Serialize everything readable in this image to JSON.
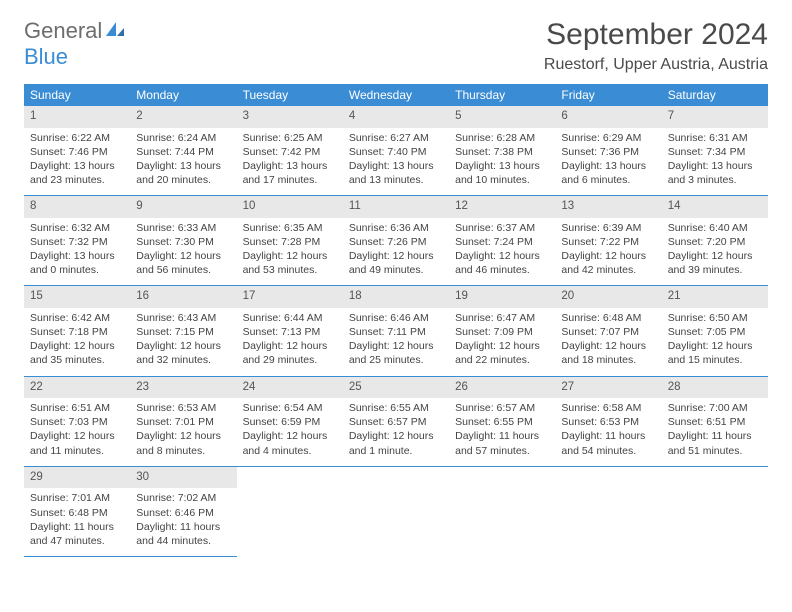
{
  "logo": {
    "part1": "General",
    "part2": "Blue"
  },
  "title": "September 2024",
  "location": "Ruestorf, Upper Austria, Austria",
  "colors": {
    "header_bg": "#3a8cd4",
    "header_text": "#ffffff",
    "daynum_bg": "#e8e8e8",
    "border": "#3a8cd4",
    "text": "#444444"
  },
  "weekdays": [
    "Sunday",
    "Monday",
    "Tuesday",
    "Wednesday",
    "Thursday",
    "Friday",
    "Saturday"
  ],
  "weeks": [
    [
      {
        "n": "1",
        "sr": "Sunrise: 6:22 AM",
        "ss": "Sunset: 7:46 PM",
        "d1": "Daylight: 13 hours",
        "d2": "and 23 minutes."
      },
      {
        "n": "2",
        "sr": "Sunrise: 6:24 AM",
        "ss": "Sunset: 7:44 PM",
        "d1": "Daylight: 13 hours",
        "d2": "and 20 minutes."
      },
      {
        "n": "3",
        "sr": "Sunrise: 6:25 AM",
        "ss": "Sunset: 7:42 PM",
        "d1": "Daylight: 13 hours",
        "d2": "and 17 minutes."
      },
      {
        "n": "4",
        "sr": "Sunrise: 6:27 AM",
        "ss": "Sunset: 7:40 PM",
        "d1": "Daylight: 13 hours",
        "d2": "and 13 minutes."
      },
      {
        "n": "5",
        "sr": "Sunrise: 6:28 AM",
        "ss": "Sunset: 7:38 PM",
        "d1": "Daylight: 13 hours",
        "d2": "and 10 minutes."
      },
      {
        "n": "6",
        "sr": "Sunrise: 6:29 AM",
        "ss": "Sunset: 7:36 PM",
        "d1": "Daylight: 13 hours",
        "d2": "and 6 minutes."
      },
      {
        "n": "7",
        "sr": "Sunrise: 6:31 AM",
        "ss": "Sunset: 7:34 PM",
        "d1": "Daylight: 13 hours",
        "d2": "and 3 minutes."
      }
    ],
    [
      {
        "n": "8",
        "sr": "Sunrise: 6:32 AM",
        "ss": "Sunset: 7:32 PM",
        "d1": "Daylight: 13 hours",
        "d2": "and 0 minutes."
      },
      {
        "n": "9",
        "sr": "Sunrise: 6:33 AM",
        "ss": "Sunset: 7:30 PM",
        "d1": "Daylight: 12 hours",
        "d2": "and 56 minutes."
      },
      {
        "n": "10",
        "sr": "Sunrise: 6:35 AM",
        "ss": "Sunset: 7:28 PM",
        "d1": "Daylight: 12 hours",
        "d2": "and 53 minutes."
      },
      {
        "n": "11",
        "sr": "Sunrise: 6:36 AM",
        "ss": "Sunset: 7:26 PM",
        "d1": "Daylight: 12 hours",
        "d2": "and 49 minutes."
      },
      {
        "n": "12",
        "sr": "Sunrise: 6:37 AM",
        "ss": "Sunset: 7:24 PM",
        "d1": "Daylight: 12 hours",
        "d2": "and 46 minutes."
      },
      {
        "n": "13",
        "sr": "Sunrise: 6:39 AM",
        "ss": "Sunset: 7:22 PM",
        "d1": "Daylight: 12 hours",
        "d2": "and 42 minutes."
      },
      {
        "n": "14",
        "sr": "Sunrise: 6:40 AM",
        "ss": "Sunset: 7:20 PM",
        "d1": "Daylight: 12 hours",
        "d2": "and 39 minutes."
      }
    ],
    [
      {
        "n": "15",
        "sr": "Sunrise: 6:42 AM",
        "ss": "Sunset: 7:18 PM",
        "d1": "Daylight: 12 hours",
        "d2": "and 35 minutes."
      },
      {
        "n": "16",
        "sr": "Sunrise: 6:43 AM",
        "ss": "Sunset: 7:15 PM",
        "d1": "Daylight: 12 hours",
        "d2": "and 32 minutes."
      },
      {
        "n": "17",
        "sr": "Sunrise: 6:44 AM",
        "ss": "Sunset: 7:13 PM",
        "d1": "Daylight: 12 hours",
        "d2": "and 29 minutes."
      },
      {
        "n": "18",
        "sr": "Sunrise: 6:46 AM",
        "ss": "Sunset: 7:11 PM",
        "d1": "Daylight: 12 hours",
        "d2": "and 25 minutes."
      },
      {
        "n": "19",
        "sr": "Sunrise: 6:47 AM",
        "ss": "Sunset: 7:09 PM",
        "d1": "Daylight: 12 hours",
        "d2": "and 22 minutes."
      },
      {
        "n": "20",
        "sr": "Sunrise: 6:48 AM",
        "ss": "Sunset: 7:07 PM",
        "d1": "Daylight: 12 hours",
        "d2": "and 18 minutes."
      },
      {
        "n": "21",
        "sr": "Sunrise: 6:50 AM",
        "ss": "Sunset: 7:05 PM",
        "d1": "Daylight: 12 hours",
        "d2": "and 15 minutes."
      }
    ],
    [
      {
        "n": "22",
        "sr": "Sunrise: 6:51 AM",
        "ss": "Sunset: 7:03 PM",
        "d1": "Daylight: 12 hours",
        "d2": "and 11 minutes."
      },
      {
        "n": "23",
        "sr": "Sunrise: 6:53 AM",
        "ss": "Sunset: 7:01 PM",
        "d1": "Daylight: 12 hours",
        "d2": "and 8 minutes."
      },
      {
        "n": "24",
        "sr": "Sunrise: 6:54 AM",
        "ss": "Sunset: 6:59 PM",
        "d1": "Daylight: 12 hours",
        "d2": "and 4 minutes."
      },
      {
        "n": "25",
        "sr": "Sunrise: 6:55 AM",
        "ss": "Sunset: 6:57 PM",
        "d1": "Daylight: 12 hours",
        "d2": "and 1 minute."
      },
      {
        "n": "26",
        "sr": "Sunrise: 6:57 AM",
        "ss": "Sunset: 6:55 PM",
        "d1": "Daylight: 11 hours",
        "d2": "and 57 minutes."
      },
      {
        "n": "27",
        "sr": "Sunrise: 6:58 AM",
        "ss": "Sunset: 6:53 PM",
        "d1": "Daylight: 11 hours",
        "d2": "and 54 minutes."
      },
      {
        "n": "28",
        "sr": "Sunrise: 7:00 AM",
        "ss": "Sunset: 6:51 PM",
        "d1": "Daylight: 11 hours",
        "d2": "and 51 minutes."
      }
    ],
    [
      {
        "n": "29",
        "sr": "Sunrise: 7:01 AM",
        "ss": "Sunset: 6:48 PM",
        "d1": "Daylight: 11 hours",
        "d2": "and 47 minutes."
      },
      {
        "n": "30",
        "sr": "Sunrise: 7:02 AM",
        "ss": "Sunset: 6:46 PM",
        "d1": "Daylight: 11 hours",
        "d2": "and 44 minutes."
      },
      null,
      null,
      null,
      null,
      null
    ]
  ]
}
